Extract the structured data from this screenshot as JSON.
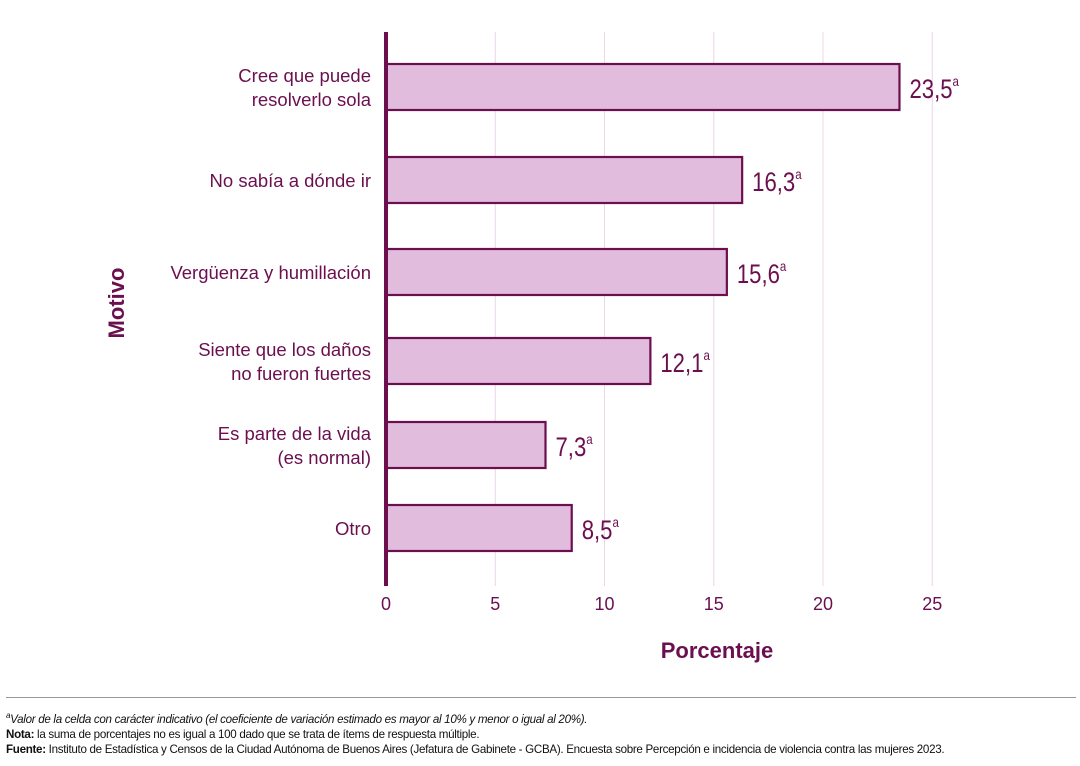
{
  "chart_data": {
    "type": "bar",
    "orientation": "horizontal",
    "categories": [
      [
        "Cree que puede",
        "resolverlo sola"
      ],
      [
        "No sabía a dónde ir"
      ],
      [
        "Vergüenza y humillación"
      ],
      [
        "Siente que los daños",
        "no fueron fuertes"
      ],
      [
        "Es parte de la vida",
        "(es normal)"
      ],
      [
        "Otro"
      ]
    ],
    "values": [
      23.5,
      16.3,
      15.6,
      12.1,
      7.3,
      8.5
    ],
    "value_labels": [
      "23,5",
      "16,3",
      "15,6",
      "12,1",
      "7,3",
      "8,5"
    ],
    "value_superscript": "a",
    "xlabel": "Porcentaje",
    "ylabel": "Motivo",
    "xlim": [
      0,
      25
    ],
    "xticks": [
      0,
      5,
      10,
      15,
      20,
      25
    ],
    "grid": "vertical",
    "colors": {
      "bar_fill": "#e2bcdc",
      "bar_stroke": "#6b0f4f",
      "text": "#6b0f4f",
      "grid": "#ecd6e7"
    }
  },
  "footnotes": {
    "a_marker": "a",
    "a_text": "Valor de la celda con carácter indicativo (el coeficiente de variación estimado es mayor al 10% y menor o igual al 20%).",
    "nota_label": "Nota:",
    "nota_text": " la suma de porcentajes no es igual a 100 dado que se trata de ítems de respuesta múltiple.",
    "fuente_label": "Fuente:",
    "fuente_text": " Instituto de Estadística y Censos de la Ciudad Autónoma de Buenos Aires (Jefatura de Gabinete - GCBA). Encuesta sobre Percepción e incidencia de violencia contra las mujeres 2023."
  }
}
